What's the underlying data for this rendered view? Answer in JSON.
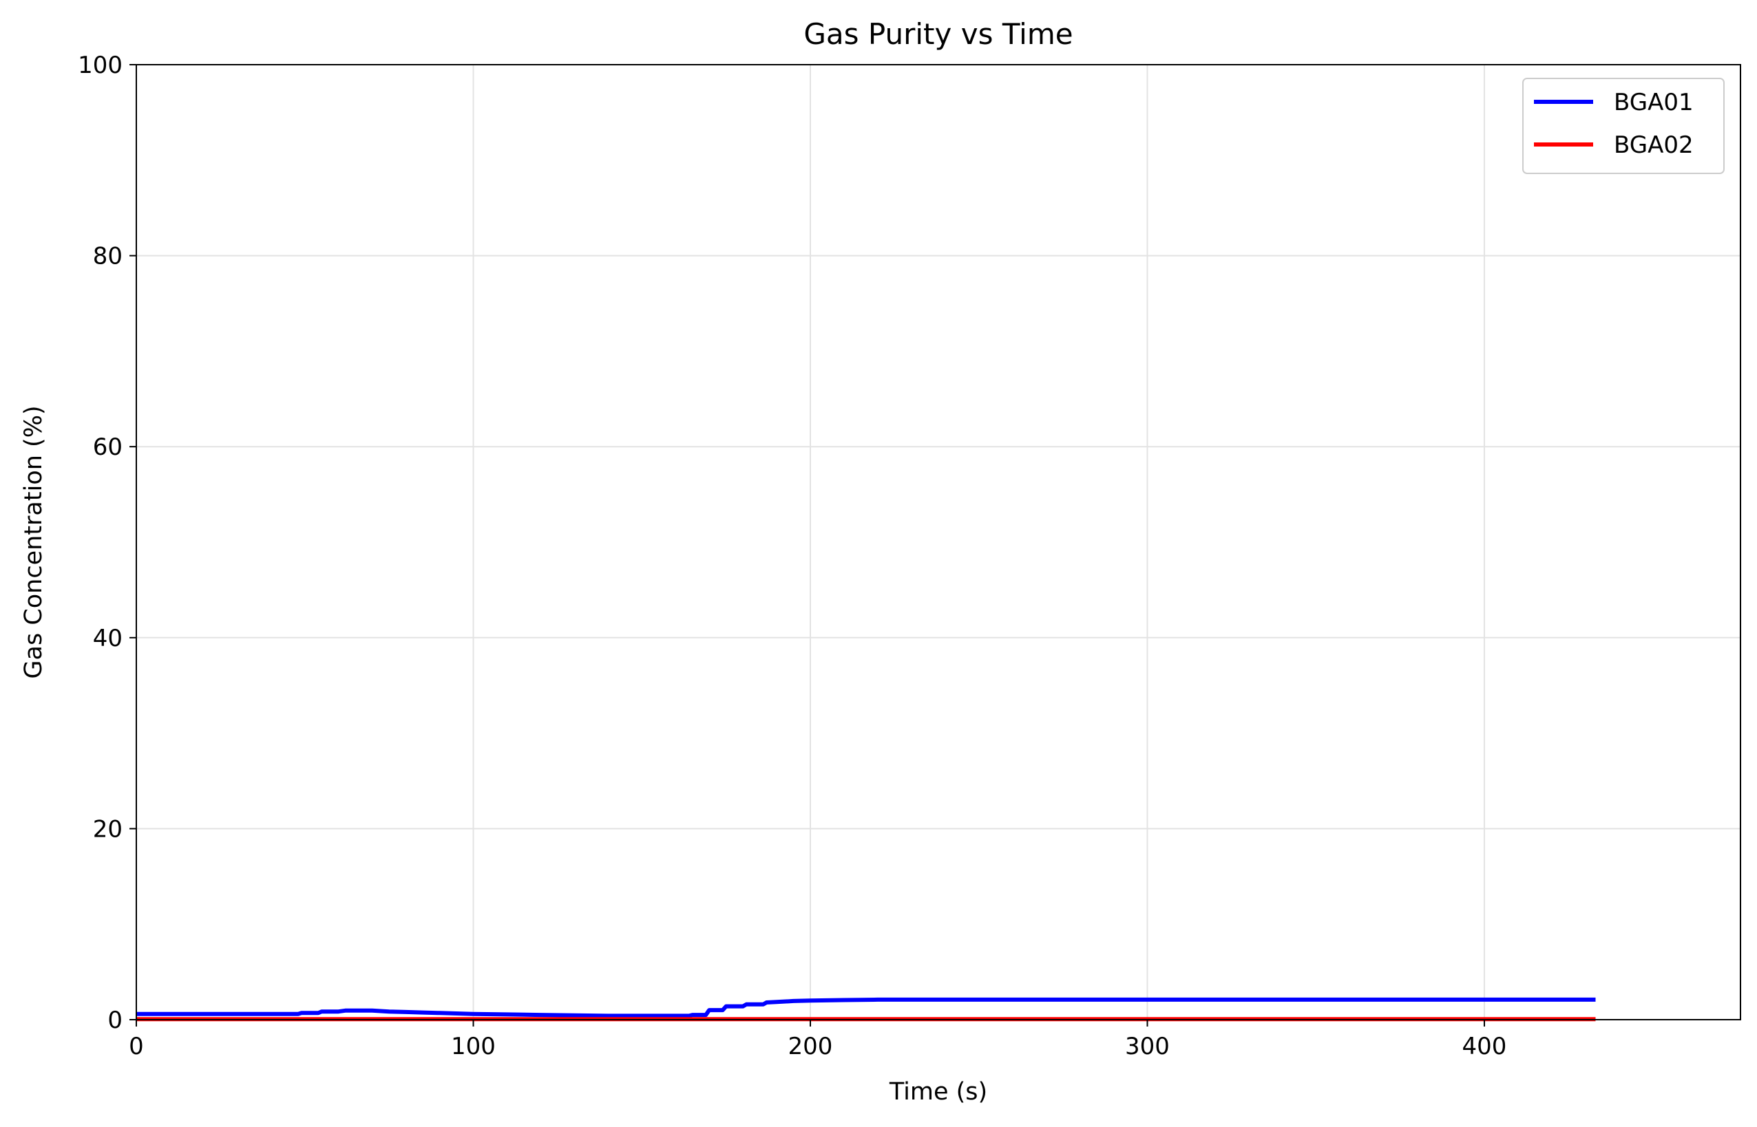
{
  "chart_data": {
    "type": "line",
    "title": "Gas Purity vs Time",
    "xlabel": "Time (s)",
    "ylabel": "Gas Concentration (%)",
    "xlim": [
      0,
      476
    ],
    "ylim": [
      0,
      100
    ],
    "xticks": [
      0,
      100,
      200,
      300,
      400
    ],
    "yticks": [
      0,
      20,
      40,
      60,
      80,
      100
    ],
    "grid": true,
    "legend_position": "top-right",
    "series": [
      {
        "name": "BGA01",
        "color": "#0000ff",
        "x": [
          0,
          48,
          49,
          54,
          55,
          60,
          62,
          70,
          75,
          80,
          85,
          90,
          95,
          100,
          110,
          120,
          130,
          140,
          150,
          160,
          164,
          165,
          169,
          170,
          174,
          175,
          180,
          181,
          186,
          187,
          190,
          195,
          200,
          210,
          220,
          250,
          300,
          350,
          400,
          433
        ],
        "y": [
          0.6,
          0.6,
          0.7,
          0.7,
          0.85,
          0.85,
          0.95,
          0.95,
          0.85,
          0.8,
          0.75,
          0.7,
          0.65,
          0.6,
          0.55,
          0.5,
          0.45,
          0.4,
          0.4,
          0.4,
          0.4,
          0.5,
          0.5,
          1.0,
          1.0,
          1.4,
          1.4,
          1.6,
          1.6,
          1.8,
          1.85,
          1.95,
          2.0,
          2.05,
          2.1,
          2.1,
          2.1,
          2.1,
          2.1,
          2.1
        ]
      },
      {
        "name": "BGA02",
        "color": "#ff0000",
        "x": [
          0,
          100,
          200,
          300,
          400,
          433
        ],
        "y": [
          0.05,
          0.05,
          0.05,
          0.05,
          0.05,
          0.05
        ]
      }
    ]
  }
}
